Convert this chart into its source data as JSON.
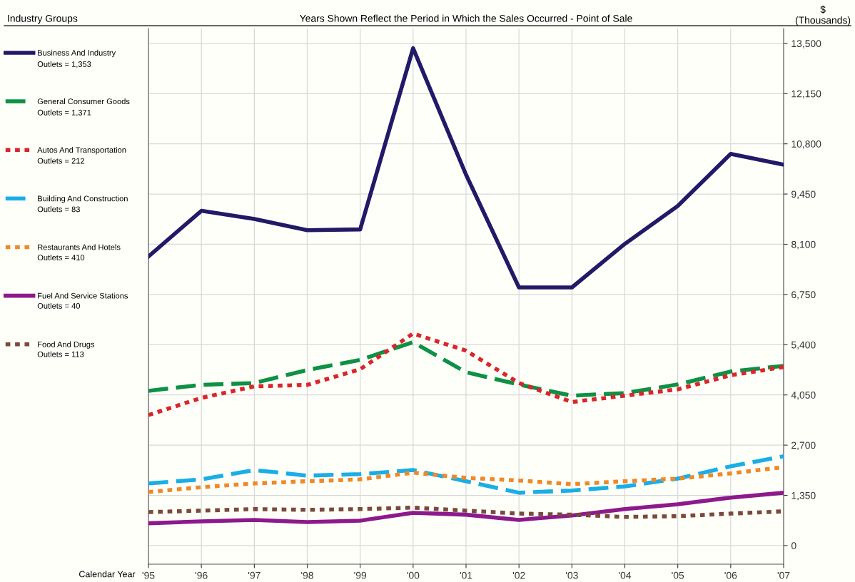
{
  "chart_data": {
    "type": "line",
    "title": "Years Shown Reflect the Period in Which the Sales Occurred - Point of Sale",
    "xlabel": "Calendar Year",
    "ylabel": "$\n(Thousands)",
    "legend_title": "Industry Groups",
    "categories": [
      "'95",
      "'96",
      "'97",
      "'98",
      "'99",
      "'00",
      "'01",
      "'02",
      "'03",
      "'04",
      "'05",
      "'06",
      "'07"
    ],
    "series": [
      {
        "name": "Business And Industry",
        "color": "#221a66",
        "line_style": "solid",
        "values": [
          7770,
          9000,
          8780,
          8480,
          8500,
          13370,
          9970,
          6940,
          6940,
          8110,
          9130,
          10530,
          10240
        ]
      },
      {
        "name": "General Consumer Goods",
        "color": "#0e9045",
        "line_style": "dashed",
        "values": [
          4160,
          4320,
          4370,
          4720,
          4990,
          5470,
          4660,
          4330,
          4030,
          4100,
          4330,
          4680,
          4830
        ]
      },
      {
        "name": "Autos And Transportation",
        "color": "#d9262b",
        "line_style": "dotted",
        "values": [
          3510,
          3970,
          4280,
          4320,
          4740,
          5700,
          5240,
          4370,
          3860,
          4030,
          4200,
          4580,
          4800
        ]
      },
      {
        "name": "Building And Construction",
        "color": "#1aaee6",
        "line_style": "dashed",
        "values": [
          1670,
          1780,
          2030,
          1880,
          1920,
          2030,
          1730,
          1420,
          1480,
          1590,
          1800,
          2130,
          2400
        ]
      },
      {
        "name": "Restaurants And Hotels",
        "color": "#ec8a2a",
        "line_style": "dotted",
        "values": [
          1440,
          1570,
          1670,
          1730,
          1780,
          1960,
          1820,
          1750,
          1650,
          1730,
          1800,
          1940,
          2110
        ]
      },
      {
        "name": "Fuel And Service Stations",
        "color": "#8c1a8c",
        "line_style": "solid",
        "values": [
          600,
          650,
          690,
          630,
          670,
          880,
          830,
          690,
          810,
          980,
          1110,
          1290,
          1420
        ]
      },
      {
        "name": "Food And Drugs",
        "color": "#7a4a3a",
        "line_style": "dotted",
        "values": [
          900,
          940,
          980,
          960,
          980,
          1020,
          940,
          860,
          830,
          770,
          790,
          860,
          920
        ]
      }
    ],
    "annotations": [
      "Outlets = 1,353",
      "Outlets = 1,371",
      "Outlets = 212",
      "Outlets = 83",
      "Outlets = 410",
      "Outlets = 40",
      "Outlets = 113"
    ],
    "ylim": [
      -500,
      13900
    ],
    "yticks": [
      0,
      {
        "value": 1350,
        "label": "1,350"
      },
      {
        "value": 2700,
        "label": "2,700"
      },
      {
        "value": 4050,
        "label": "4,050"
      },
      {
        "value": 5400,
        "label": "5,400"
      },
      {
        "value": 6750,
        "label": "6,750"
      },
      {
        "value": 8100,
        "label": "8,100"
      },
      {
        "value": 9450,
        "label": "9,450"
      },
      {
        "value": 10800,
        "label": "10,800"
      },
      {
        "value": 12150,
        "label": "12,150"
      },
      {
        "value": 13500,
        "label": "13,500"
      }
    ],
    "grid": true,
    "legend": "left"
  }
}
